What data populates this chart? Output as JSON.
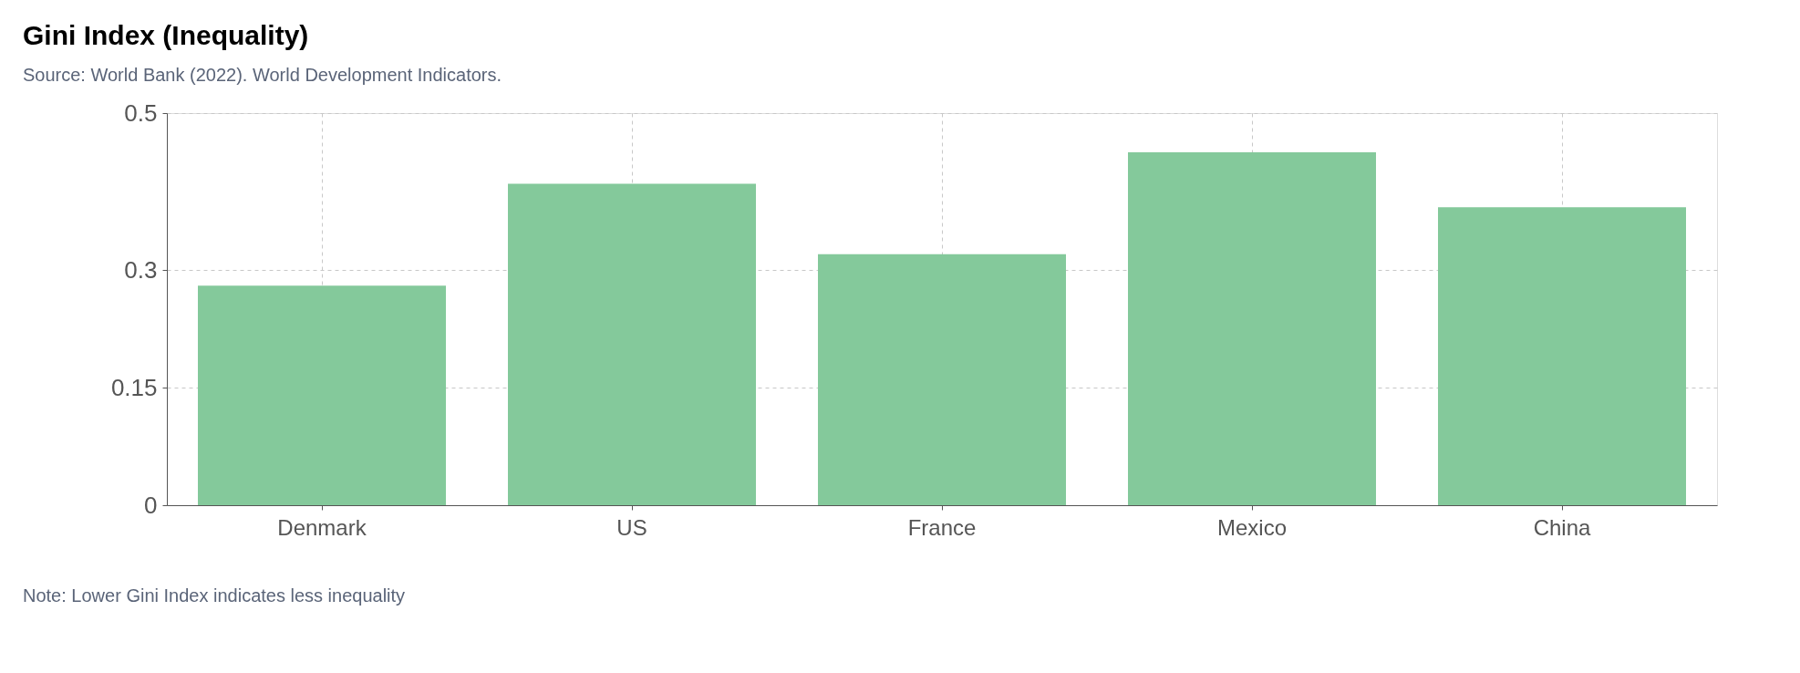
{
  "chart_data": {
    "type": "bar",
    "title": "Gini Index (Inequality)",
    "subtitle": "Source: World Bank (2022). World Development Indicators.",
    "categories": [
      "Denmark",
      "US",
      "France",
      "Mexico",
      "China"
    ],
    "values": [
      0.28,
      0.41,
      0.32,
      0.45,
      0.38
    ],
    "color": "#84c99b",
    "ylim": [
      0,
      0.5
    ],
    "yticks": [
      0,
      0.15,
      0.3,
      0.5
    ],
    "grid": true,
    "annotations": [
      "Note: Lower Gini Index indicates less inequality"
    ]
  }
}
